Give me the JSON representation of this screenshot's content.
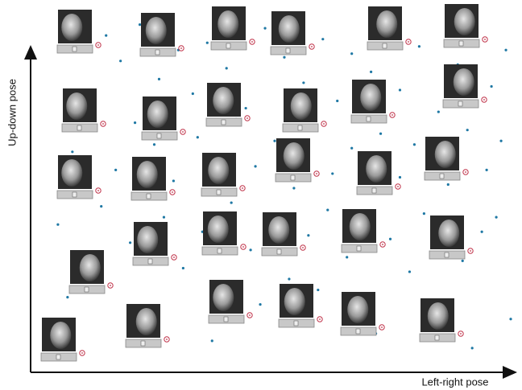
{
  "chart_data": {
    "type": "scatter",
    "x_label": "Left-right pose",
    "y_label": "Up-down pose",
    "xlim": [
      0,
      100
    ],
    "ylim": [
      0,
      100
    ],
    "color": "#1f78a4",
    "x": [
      15,
      18,
      22,
      26,
      30,
      33,
      36,
      40,
      44,
      48,
      52,
      56,
      60,
      63,
      66,
      70,
      73,
      76,
      80,
      84,
      88,
      92,
      95,
      98,
      8,
      12,
      17,
      21,
      25,
      29,
      34,
      38,
      42,
      46,
      50,
      54,
      58,
      62,
      66,
      69,
      72,
      76,
      79,
      83,
      86,
      90,
      94,
      97,
      5,
      10,
      14,
      20,
      27,
      31,
      35,
      41,
      45,
      49,
      53,
      57,
      61,
      65,
      68,
      74,
      78,
      81,
      85,
      89,
      93,
      96,
      3,
      7,
      24,
      37,
      47,
      59,
      71,
      82,
      91,
      99
    ],
    "y": [
      92,
      85,
      95,
      80,
      88,
      76,
      90,
      83,
      72,
      94,
      86,
      79,
      91,
      74,
      87,
      82,
      93,
      77,
      89,
      71,
      84,
      96,
      78,
      88,
      60,
      66,
      55,
      68,
      62,
      52,
      64,
      58,
      69,
      56,
      63,
      50,
      67,
      54,
      61,
      57,
      65,
      53,
      62,
      59,
      51,
      66,
      55,
      63,
      40,
      30,
      45,
      35,
      42,
      28,
      38,
      46,
      33,
      41,
      25,
      37,
      44,
      31,
      39,
      36,
      27,
      43,
      34,
      30,
      38,
      42,
      12,
      20,
      15,
      8,
      18,
      22,
      10,
      16,
      6,
      14
    ]
  }
}
